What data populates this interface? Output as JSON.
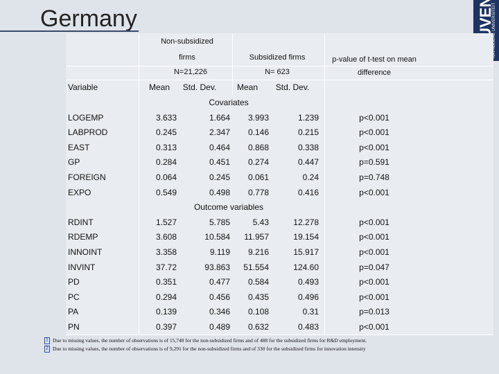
{
  "title": "Germany",
  "logo": {
    "name": "LEUVEN",
    "sub": "KATHOLIEKE UNIVERSITEIT"
  },
  "header": {
    "group1": [
      "Non-subsidized",
      "firms"
    ],
    "group1_n": "N=21,226",
    "group2": "Subsidized firms",
    "group2_n": "N= 623",
    "pvalue": [
      "p-value of t-test on mean",
      "difference"
    ],
    "variable": "Variable",
    "mean1": "Mean",
    "sd1": "Std. Dev.",
    "mean2": "Mean",
    "sd2": "Std. Dev."
  },
  "sections": [
    {
      "label": "Covariates",
      "rows": [
        [
          "LOGEMP",
          "3.633",
          "1.664",
          "3.993",
          "1.239",
          "p<0.001"
        ],
        [
          "LABPROD",
          "0.245",
          "2.347",
          "0.146",
          "0.215",
          "p<0.001"
        ],
        [
          "EAST",
          "0.313",
          "0.464",
          "0.868",
          "0.338",
          "p<0.001"
        ],
        [
          "GP",
          "0.284",
          "0.451",
          "0.274",
          "0.447",
          "p=0.591"
        ],
        [
          "FOREIGN",
          "0.064",
          "0.245",
          "0.061",
          "0.24",
          "p=0.748"
        ],
        [
          "EXPO",
          "0.549",
          "0.498",
          "0.778",
          "0.416",
          "p<0.001"
        ]
      ]
    },
    {
      "label": "Outcome variables",
      "rows": [
        [
          "RDINT",
          "1.527",
          "5.785",
          "5.43",
          "12.278",
          "p<0.001"
        ],
        [
          "RDEMP",
          "3.608",
          "10.584",
          "11.957",
          "19.154",
          "p<0.001"
        ],
        [
          "INNOINT",
          "3.358",
          "9.119",
          "9.216",
          "15.917",
          "p<0.001"
        ],
        [
          "INVINT",
          "37.72",
          "93.863",
          "51.554",
          "124.60",
          "p=0.047"
        ],
        [
          "PD",
          "0.351",
          "0.477",
          "0.584",
          "0.493",
          "p<0.001"
        ],
        [
          "PC",
          "0.294",
          "0.456",
          "0.435",
          "0.496",
          "p<0.001"
        ],
        [
          "PA",
          "0.139",
          "0.346",
          "0.108",
          "0.31",
          "p=0.013"
        ],
        [
          "PN",
          "0.397",
          "0.489",
          "0.632",
          "0.483",
          "p<0.001"
        ]
      ]
    }
  ],
  "footnotes": [
    {
      "marker": "1",
      "text": "Due to missing values, the number of observations is of 15,748 for the non-subsidized firms and of 488 for the subsidized firms for R&D employment."
    },
    {
      "marker": "2",
      "text": "Due to missing values, the number of observations is of 9,291 for the non-subsidized firms and of 330 for the subsidized firms for innovation intensity"
    }
  ]
}
